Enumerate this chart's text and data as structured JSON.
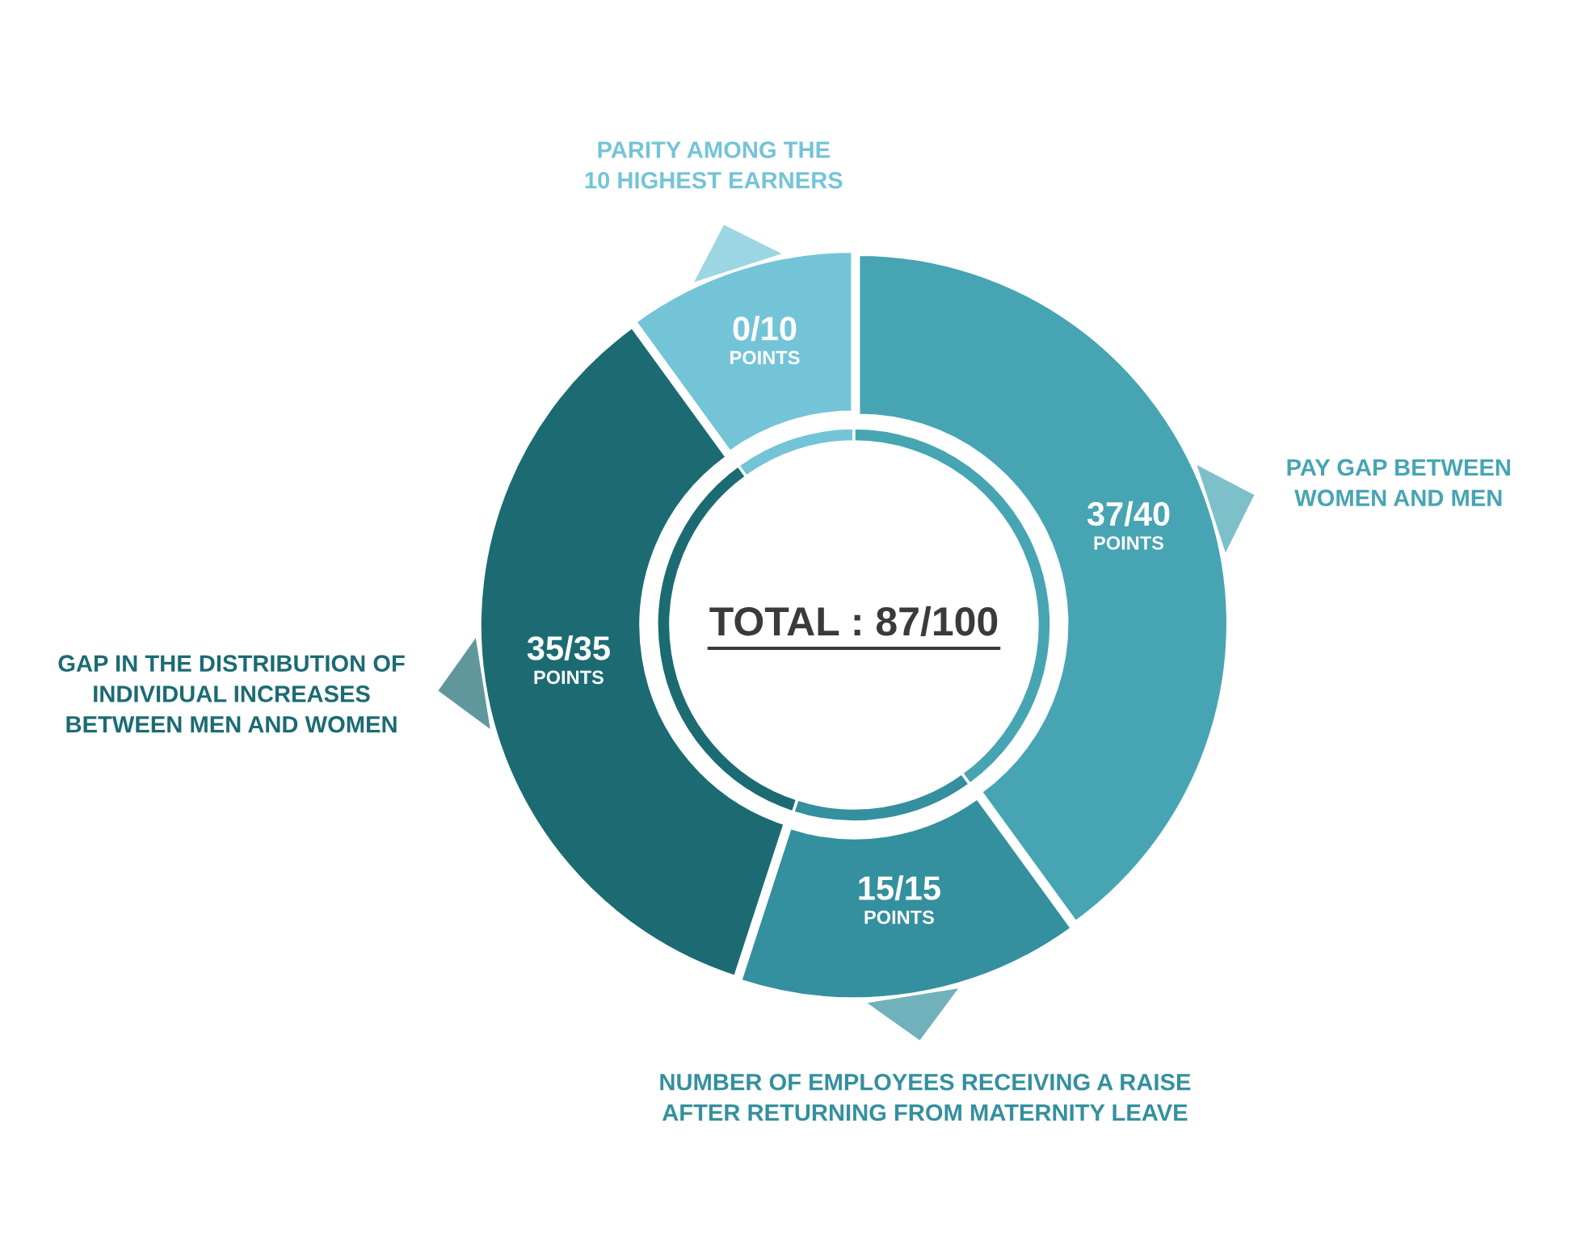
{
  "chart_data": {
    "type": "donut",
    "categories": [
      "PARITY AMONG THE\n10 HIGHEST EARNERS",
      "PAY GAP BETWEEN\nWOMEN AND MEN",
      "NUMBER OF EMPLOYEES RECEIVING A RAISE\nAFTER RETURNING FROM MATERNITY LEAVE",
      "GAP IN THE DISTRIBUTION OF\nINDIVIDUAL INCREASES\nBETWEEN MEN AND WOMEN"
    ],
    "series": [
      {
        "values": [
          10,
          40,
          15,
          35
        ],
        "colors": [
          "#74c4d7",
          "#47a5b3",
          "#34909e",
          "#1c6b73"
        ],
        "value_labels": [
          "0/10\nPOINTS",
          "37/40\nPOINTS",
          "15/15\nPOINTS",
          "35/35\nPOINTS"
        ]
      },
      {
        "values": [
          10,
          40,
          15,
          35
        ],
        "colors": [
          "#74c4d7",
          "#47a5b3",
          "#34909e",
          "#1c6b73"
        ]
      }
    ],
    "annotations": [
      "TOTAL : 87/100"
    ]
  }
}
